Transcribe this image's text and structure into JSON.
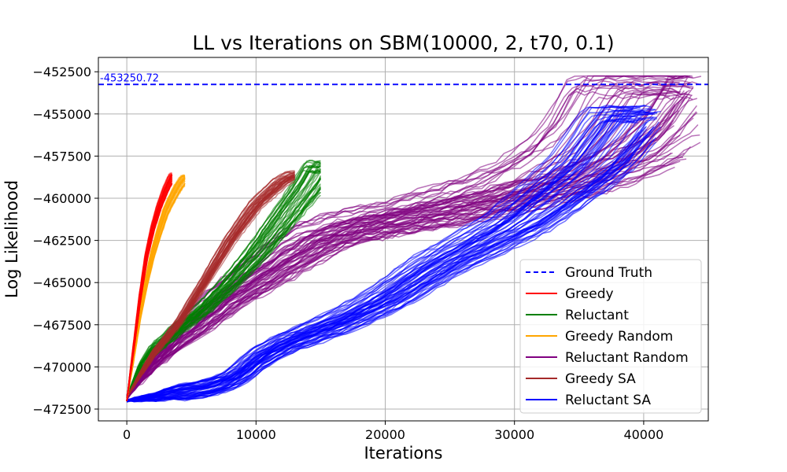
{
  "chart_data": {
    "type": "line",
    "title": "LL vs Iterations on SBM(10000, 2, t70, 0.1)",
    "xlabel": "Iterations",
    "ylabel": "Log Likelihood",
    "xlim": [
      -2200,
      45000
    ],
    "ylim": [
      -473200,
      -451650
    ],
    "x_ticks": [
      0,
      10000,
      20000,
      30000,
      40000
    ],
    "x_tick_labels": [
      "0",
      "10000",
      "20000",
      "30000",
      "40000"
    ],
    "y_ticks": [
      -472500,
      -470000,
      -467500,
      -465000,
      -462500,
      -460000,
      -457500,
      -455000,
      -452500
    ],
    "y_tick_labels": [
      "−472500",
      "−470000",
      "−467500",
      "−465000",
      "−462500",
      "−460000",
      "−457500",
      "−455000",
      "−452500"
    ],
    "grid": true,
    "legend_position": "bottom-right",
    "ground_truth": {
      "name": "Ground Truth",
      "value": -453250.72,
      "label": "-453250.72",
      "color": "#0000ff",
      "style": "dashed"
    },
    "series": [
      {
        "name": "Greedy",
        "color": "#ff0000",
        "x": [
          0,
          500,
          1000,
          1500,
          2000,
          2500,
          3000,
          3500
        ],
        "y": [
          -472000,
          -469000,
          -466000,
          -463500,
          -461800,
          -460500,
          -459500,
          -458700
        ]
      },
      {
        "name": "Reluctant",
        "color": "#008000",
        "x": [
          0,
          1000,
          2000,
          4000,
          6000,
          8000,
          10000,
          12000,
          14000,
          15000
        ],
        "y": [
          -471800,
          -470000,
          -469000,
          -467700,
          -466500,
          -465000,
          -463300,
          -461300,
          -459300,
          -458100
        ]
      },
      {
        "name": "Greedy Random",
        "color": "#ffa500",
        "x": [
          0,
          500,
          1000,
          1500,
          2000,
          2500,
          3000,
          3500,
          4000,
          4500
        ],
        "y": [
          -472000,
          -469500,
          -467000,
          -465000,
          -463300,
          -462000,
          -460800,
          -460000,
          -459300,
          -458800
        ]
      },
      {
        "name": "Reluctant Random",
        "color": "#800080",
        "x": [
          0,
          2000,
          4000,
          6000,
          8000,
          10000,
          12000,
          14000,
          16000,
          20000,
          24000,
          28000,
          32000,
          35000,
          38000,
          40000,
          42000
        ],
        "y": [
          -471800,
          -469800,
          -468200,
          -467000,
          -465800,
          -464800,
          -463800,
          -462800,
          -462000,
          -461300,
          -460800,
          -460000,
          -459200,
          -458300,
          -457000,
          -455500,
          -453200
        ]
      },
      {
        "name": "Greedy SA",
        "color": "#a52a2a",
        "x": [
          0,
          1000,
          2000,
          4000,
          6000,
          8000,
          10000,
          12000,
          13000
        ],
        "y": [
          -471800,
          -470500,
          -469300,
          -467400,
          -465000,
          -462500,
          -460400,
          -459000,
          -458600
        ]
      },
      {
        "name": "Reluctant SA",
        "color": "#0000ff",
        "x": [
          0,
          2000,
          4000,
          6000,
          8000,
          9000,
          10000,
          12000,
          14000,
          16000,
          18000,
          20000,
          22000,
          24000,
          26000,
          28000,
          30000,
          32000,
          34000,
          36000,
          38000,
          39000
        ],
        "y": [
          -472000,
          -471800,
          -471500,
          -471300,
          -470800,
          -470300,
          -469600,
          -468700,
          -468100,
          -467500,
          -466800,
          -466000,
          -465000,
          -464000,
          -463200,
          -462400,
          -461600,
          -460500,
          -459300,
          -458000,
          -456000,
          -455000
        ]
      }
    ]
  }
}
